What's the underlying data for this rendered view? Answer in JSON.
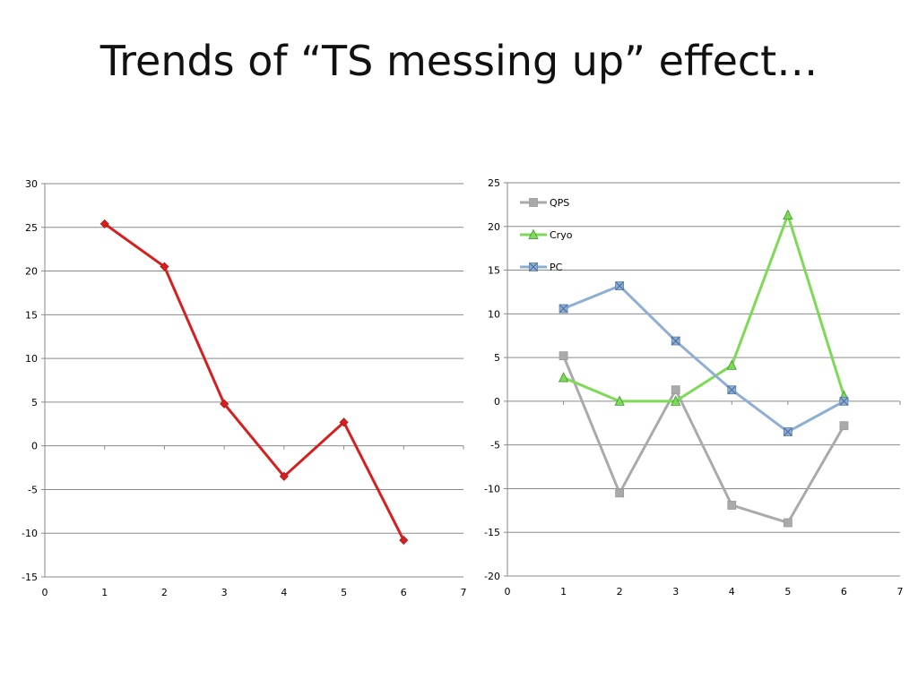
{
  "slide": {
    "title": "Trends of “TS messing up” effect…"
  },
  "chart_data": [
    {
      "type": "line",
      "title": "",
      "xlabel": "",
      "ylabel": "",
      "xlim": [
        0,
        7
      ],
      "ylim": [
        -15,
        30
      ],
      "x_ticks": [
        0,
        1,
        2,
        3,
        4,
        5,
        6,
        7
      ],
      "y_ticks": [
        30,
        25,
        20,
        15,
        10,
        5,
        0,
        -5,
        -10,
        -15
      ],
      "grid": "horizontal",
      "legend": "none",
      "series": [
        {
          "color": "#d62020",
          "marker": "diamond",
          "x": [
            1,
            2,
            3,
            4,
            5,
            6
          ],
          "values": [
            25.4,
            20.5,
            4.8,
            -3.5,
            2.7,
            -10.8
          ]
        }
      ]
    },
    {
      "type": "line",
      "title": "",
      "xlabel": "",
      "ylabel": "",
      "xlim": [
        0,
        7
      ],
      "ylim": [
        -20,
        25
      ],
      "x_ticks": [
        0,
        1,
        2,
        3,
        4,
        5,
        6,
        7
      ],
      "y_ticks": [
        25,
        20,
        15,
        10,
        5,
        0,
        -5,
        -10,
        -15,
        -20
      ],
      "grid": "horizontal",
      "legend": "top-left",
      "series": [
        {
          "name": "QPS",
          "color": "#aaaaaa",
          "marker": "square",
          "x": [
            1,
            2,
            3,
            4,
            5,
            6
          ],
          "values": [
            5.2,
            -10.5,
            1.3,
            -11.9,
            -13.9,
            -2.8
          ]
        },
        {
          "name": "Cryo",
          "color": "#7ed957",
          "marker": "triangle",
          "x": [
            1,
            2,
            3,
            4,
            5,
            6
          ],
          "values": [
            2.7,
            0.0,
            0.0,
            4.1,
            21.3,
            0.6
          ]
        },
        {
          "name": "PC",
          "color": "#8eaed3",
          "marker": "x-square",
          "x": [
            1,
            2,
            3,
            4,
            5,
            6
          ],
          "values": [
            10.6,
            13.2,
            6.9,
            1.3,
            -3.5,
            0.0
          ]
        }
      ]
    }
  ]
}
